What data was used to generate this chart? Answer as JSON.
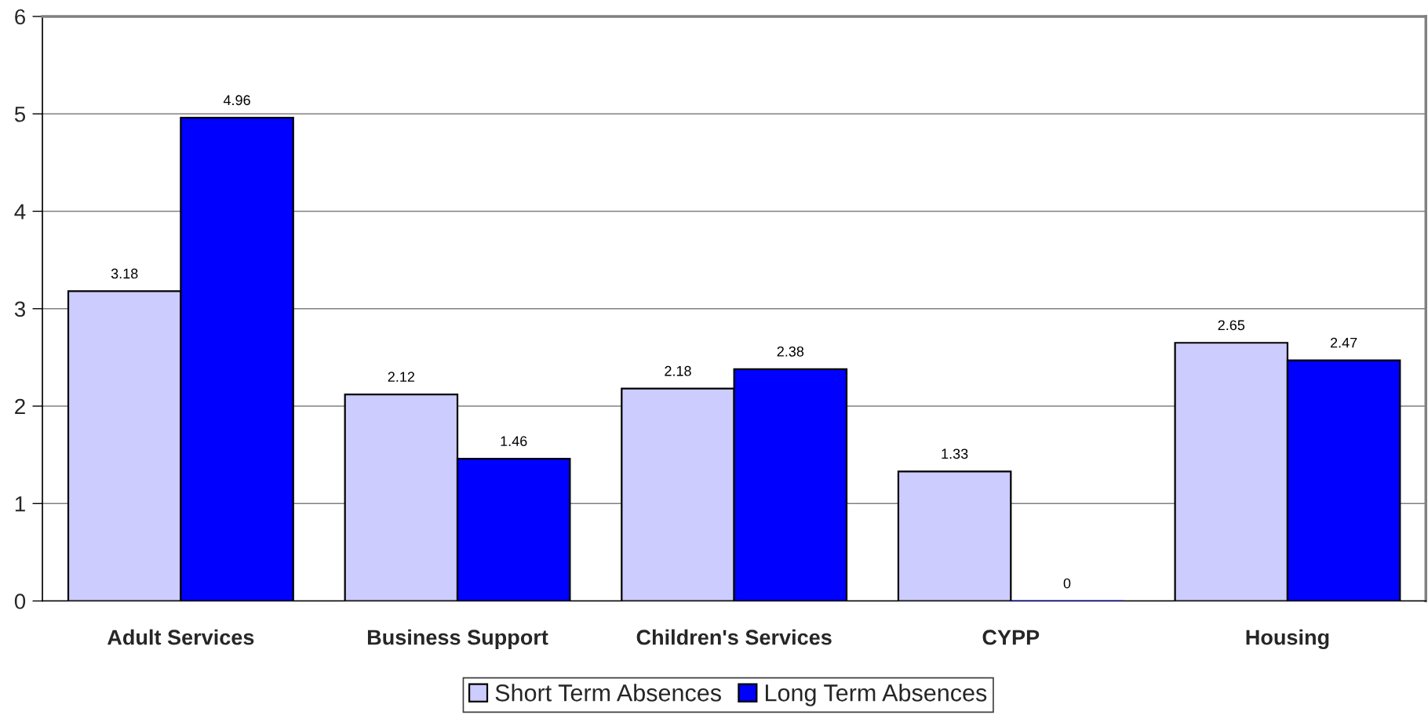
{
  "chart_data": {
    "type": "bar",
    "categories": [
      "Adult Services",
      "Business Support",
      "Children's Services",
      "CYPP",
      "Housing"
    ],
    "series": [
      {
        "name": "Short Term Absences",
        "color": "#ccccff",
        "values": [
          3.18,
          2.12,
          2.18,
          1.33,
          2.65
        ]
      },
      {
        "name": "Long Term Absences",
        "color": "#0000ff",
        "values": [
          4.96,
          1.46,
          2.38,
          0,
          2.47
        ]
      }
    ],
    "ylim": [
      0,
      6
    ],
    "yticks": [
      0,
      1,
      2,
      3,
      4,
      5,
      6
    ],
    "grid": "y",
    "legend": "bottom",
    "data_labels": true
  }
}
